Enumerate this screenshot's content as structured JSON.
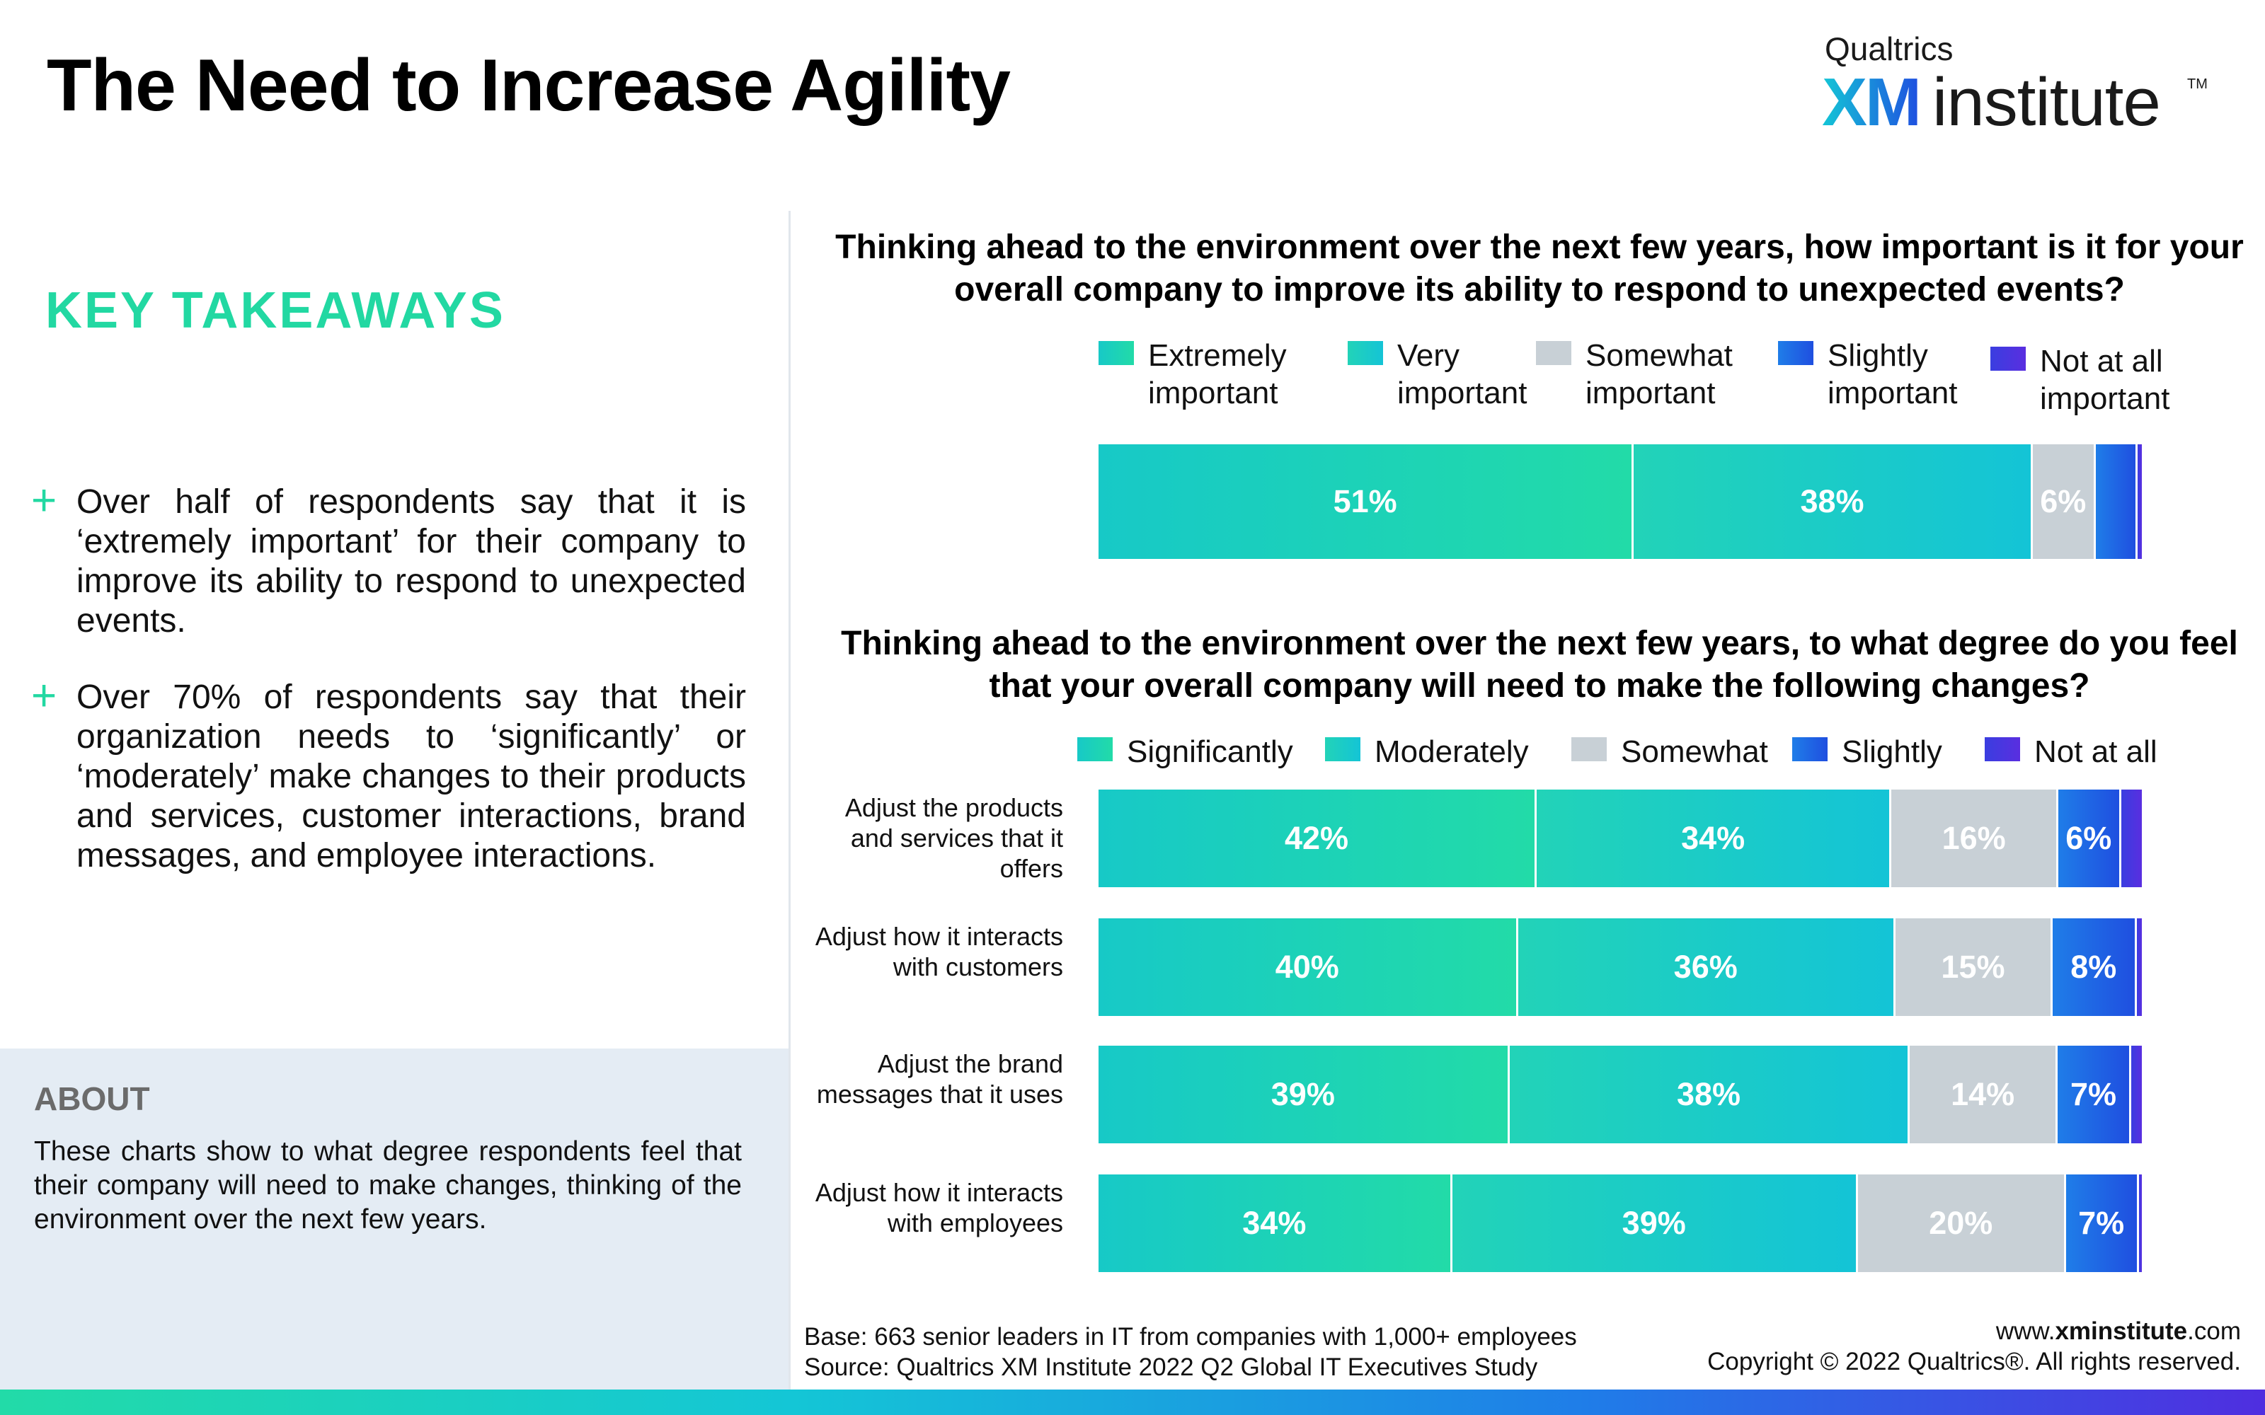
{
  "page": {
    "title": "The Need to Increase Agility",
    "logo": {
      "brand": "Qualtrics",
      "xm": "XM",
      "institute": "institute",
      "tm": "TM"
    },
    "takeaways_title": "KEY TAKEAWAYS",
    "plus_glyph": "+",
    "takeaways": [
      "Over half of respondents say that it is ‘extremely important’ for their company to improve its ability to respond to unexpected events.",
      "Over 70% of respondents say that their organization needs to ‘significantly’ or ‘moderately’ make changes to their products and services, customer interactions, brand messages, and employee interactions."
    ],
    "about": {
      "title": "ABOUT",
      "text": "These charts show to what degree respondents feel that their company will need to make changes, thinking of the environment over the next few years."
    },
    "footer": {
      "base": "Base: 663 senior leaders in IT from companies with 1,000+ employees",
      "source": "Source: Qualtrics XM Institute 2022 Q2 Global IT Executives Study",
      "website_prefix": "www.",
      "website_bold": "xminstitute",
      "website_suffix": ".com",
      "copyright": "Copyright © 2022 Qualtrics®. All rights reserved."
    }
  },
  "colors": {
    "accent": "#22d8a2",
    "title_text": "#000000",
    "teal_light": "#22dba8",
    "teal": "#17c9c7",
    "gray": "#c8d0d6",
    "blue": "#1f4fe0",
    "indigo": "#4f2ee0",
    "about_bg": "#e4ecf4",
    "about_title": "#6b6b6b"
  },
  "chart_data": [
    {
      "type": "bar",
      "orientation": "horizontal",
      "stacked": true,
      "title": "Thinking ahead to the environment over the next few years, how important is it for your overall company to improve its ability to respond to unexpected events?",
      "xlim": [
        0,
        100
      ],
      "legend_position": "top",
      "series": [
        {
          "name": "Extremely\nimportant",
          "color": "#22dba8",
          "values": [
            51
          ],
          "labels": [
            "51%"
          ]
        },
        {
          "name": "Very\nimportant",
          "color": "#17c9c7",
          "values": [
            38
          ],
          "labels": [
            "38%"
          ]
        },
        {
          "name": "Somewhat\nimportant",
          "color": "#c8d0d6",
          "values": [
            6
          ],
          "labels": [
            "6%"
          ]
        },
        {
          "name": "Slightly\nimportant",
          "color": "#1f4fe0",
          "values": [
            4
          ],
          "labels": [
            ""
          ]
        },
        {
          "name": "Not at all\nimportant",
          "color": "#4f2ee0",
          "values": [
            0.4
          ],
          "labels": [
            ""
          ]
        }
      ]
    },
    {
      "type": "bar",
      "orientation": "horizontal",
      "stacked": true,
      "title": "Thinking ahead to the environment over the next few years, to what degree do you feel that your overall company will need to make the following changes?",
      "xlim": [
        0,
        100
      ],
      "legend_position": "top",
      "categories": [
        "Adjust the products and services that it offers",
        "Adjust how it interacts with customers",
        "Adjust the brand messages that it uses",
        "Adjust how it interacts with employees"
      ],
      "series": [
        {
          "name": "Significantly",
          "color": "#22dba8",
          "values": [
            42,
            40,
            39,
            34
          ],
          "labels": [
            "42%",
            "40%",
            "39%",
            "34%"
          ]
        },
        {
          "name": "Moderately",
          "color": "#17c9c7",
          "values": [
            34,
            36,
            38,
            39
          ],
          "labels": [
            "34%",
            "36%",
            "38%",
            "39%"
          ]
        },
        {
          "name": "Somewhat",
          "color": "#c8d0d6",
          "values": [
            16,
            15,
            14,
            20
          ],
          "labels": [
            "16%",
            "15%",
            "14%",
            "20%"
          ]
        },
        {
          "name": "Slightly",
          "color": "#1f4fe0",
          "values": [
            6,
            8,
            7,
            7
          ],
          "labels": [
            "6%",
            "8%",
            "7%",
            "7%"
          ]
        },
        {
          "name": "Not at all",
          "color": "#4f2ee0",
          "values": [
            2,
            0.5,
            1,
            0.3
          ],
          "labels": [
            "",
            "",
            "",
            ""
          ]
        }
      ]
    }
  ]
}
